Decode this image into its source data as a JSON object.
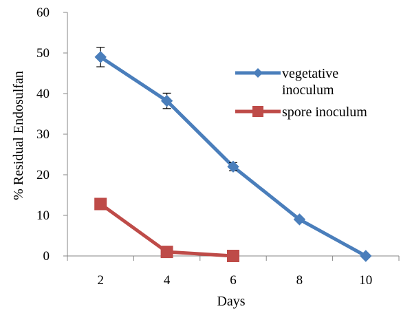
{
  "chart_data": {
    "type": "line",
    "title": "",
    "xlabel": "Days",
    "ylabel": "% Residual Endosulfan",
    "x_ticks": [
      "2",
      "4",
      "6",
      "8",
      "10"
    ],
    "y_ticks": [
      "0",
      "10",
      "20",
      "30",
      "40",
      "50",
      "60"
    ],
    "xlim": [
      1,
      11
    ],
    "ylim": [
      0,
      60
    ],
    "grid": false,
    "legend_position": "right",
    "series": [
      {
        "name_lines": [
          "vegetative",
          "inoculum"
        ],
        "color": "#4a7ebb",
        "marker": "diamond",
        "x": [
          2,
          4,
          6,
          8,
          10
        ],
        "y": [
          49,
          38.2,
          22,
          9,
          0
        ],
        "error": [
          2.4,
          1.9,
          1.0,
          0,
          0
        ]
      },
      {
        "name_lines": [
          "spore inoculum"
        ],
        "color": "#be4b48",
        "marker": "square",
        "x": [
          2,
          4,
          6
        ],
        "y": [
          12.8,
          1,
          0
        ],
        "error": [
          0,
          0,
          0
        ]
      }
    ]
  }
}
